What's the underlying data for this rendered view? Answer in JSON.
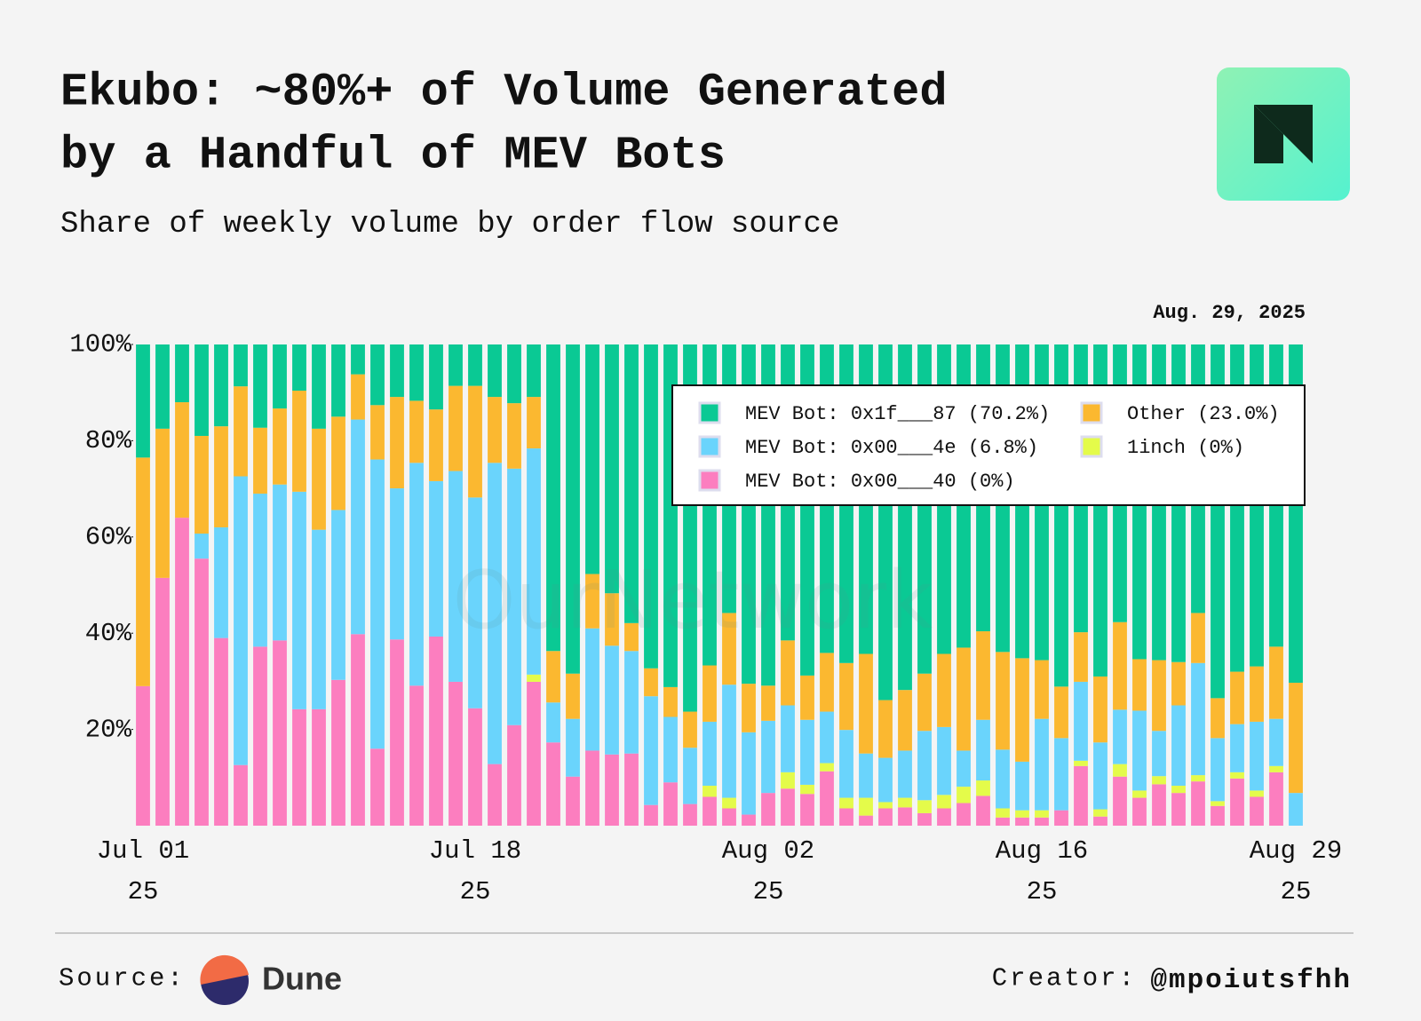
{
  "chart_data": {
    "type": "stacked_bar",
    "title": [
      "Ekubo: ~80%+ of Volume Generated",
      "by a Handful of MEV Bots"
    ],
    "subtitle": "Share of weekly volume by order flow source",
    "annotation": "Aug. 29, 2025",
    "watermark": "OurNetwork",
    "categories": [
      "Jul 01\n25",
      null,
      null,
      null,
      null,
      null,
      null,
      null,
      null,
      null,
      null,
      null,
      null,
      null,
      null,
      null,
      null,
      "Jul 18\n25",
      null,
      null,
      null,
      null,
      null,
      null,
      null,
      null,
      null,
      null,
      null,
      null,
      null,
      null,
      "Aug 02\n25",
      null,
      null,
      null,
      null,
      null,
      null,
      null,
      null,
      null,
      null,
      null,
      null,
      null,
      "Aug 16\n25",
      null,
      null,
      null,
      null,
      null,
      null,
      null,
      null,
      null,
      null,
      null,
      null,
      "Aug 29\n25"
    ],
    "ylim": [
      0,
      100
    ],
    "yticks": [
      {
        "value": 20,
        "label": "20%"
      },
      {
        "value": 40,
        "label": "40%"
      },
      {
        "value": 60,
        "label": "60%"
      },
      {
        "value": 80,
        "label": "80%"
      },
      {
        "value": 100,
        "label": "100%"
      }
    ],
    "grid": false,
    "series": [
      {
        "name": "MEV Bot: 0x00___40 (0%)",
        "color": "#fc7ebf",
        "values": [
          29,
          51.5,
          64,
          55.5,
          39,
          12.6,
          37.2,
          38.5,
          24.2,
          24.2,
          30.3,
          39.8,
          16,
          38.7,
          29.1,
          39.3,
          29.9,
          24.4,
          12.8,
          20.9,
          29.9,
          17.3,
          10.2,
          15.6,
          14.8,
          15,
          4.3,
          9,
          4.5,
          6,
          3.6,
          2.3,
          6.8,
          7.7,
          6.6,
          11.3,
          3.6,
          2.1,
          3.6,
          3.8,
          2.6,
          3.6,
          4.7,
          6.2,
          1.7,
          1.7,
          1.7,
          3.2,
          12.4,
          1.9,
          10.2,
          5.8,
          8.6,
          6.8,
          9.2,
          4.1,
          9.8,
          6,
          11.1,
          0
        ]
      },
      {
        "name": "1inch (0%)",
        "color": "#e4fb4a",
        "values": [
          0,
          0,
          0,
          0,
          0,
          0,
          0,
          0,
          0,
          0,
          0,
          0,
          0,
          0,
          0,
          0,
          0,
          0,
          0,
          0,
          1.5,
          0,
          0,
          0,
          0,
          0,
          0,
          0,
          0,
          2.3,
          2.2,
          0,
          0,
          3.4,
          1.9,
          1.7,
          2.2,
          3.7,
          1.3,
          2,
          2.7,
          2.8,
          3.4,
          3.2,
          1.9,
          1.5,
          1.5,
          0,
          1.1,
          1.5,
          2.6,
          1.5,
          1.7,
          1.5,
          1.3,
          1,
          1.3,
          1.3,
          1.3,
          0
        ]
      },
      {
        "name": "MEV Bot: 0x00___4e (6.8%)",
        "color": "#6ad4fc",
        "values": [
          0,
          0,
          0,
          5.2,
          23,
          60,
          31.8,
          32.4,
          45.2,
          37.3,
          35.3,
          44.6,
          60.1,
          31.4,
          46.3,
          32.3,
          43.8,
          43.8,
          62.6,
          53.3,
          47,
          8.3,
          12,
          25.4,
          22.6,
          21.3,
          22.6,
          13.6,
          11.7,
          13.3,
          23.5,
          17.1,
          15,
          13.9,
          13.5,
          10.7,
          14.1,
          9.2,
          9.2,
          9.8,
          14.4,
          14.1,
          7.5,
          12.6,
          12.2,
          10.1,
          19,
          15,
          16.4,
          13.9,
          11.3,
          16.6,
          9.4,
          16.7,
          23.3,
          13.1,
          10,
          14.3,
          9.8,
          6.8
        ]
      },
      {
        "name": "Other (23.0%)",
        "color": "#fbb830",
        "values": [
          47.5,
          31,
          24,
          20.3,
          21,
          18.7,
          13.7,
          15.8,
          21,
          21,
          19.4,
          9.4,
          11.3,
          19,
          12.9,
          14.9,
          17.7,
          23.2,
          13.7,
          13.6,
          10.7,
          10.7,
          9.4,
          11.3,
          10.9,
          5.8,
          5.8,
          6.2,
          7.5,
          11.7,
          14.9,
          10.1,
          7.3,
          13.5,
          9.2,
          12.2,
          13.9,
          20.7,
          12,
          12.6,
          11.9,
          15.2,
          21.4,
          18.4,
          20.3,
          21.5,
          12.2,
          10.7,
          10.3,
          13.7,
          18.2,
          10.7,
          14.7,
          9,
          10.4,
          8.3,
          10.9,
          11.5,
          15,
          22.9
        ]
      },
      {
        "name": "MEV Bot: 0x1f___87 (70.2%)",
        "color": "#0ac994",
        "values": [
          23.5,
          17.5,
          12,
          19,
          17,
          8.7,
          17.3,
          13.3,
          9.6,
          17.5,
          15,
          6.2,
          12.6,
          10.9,
          11.7,
          13.5,
          8.6,
          8.6,
          10.9,
          12.2,
          10.9,
          63.7,
          68.4,
          47.7,
          51.7,
          57.9,
          67.3,
          71.2,
          76.3,
          66.7,
          55.8,
          70.5,
          70.9,
          61.5,
          68.8,
          64.1,
          66.2,
          64.3,
          73.9,
          71.8,
          68.4,
          64.3,
          63,
          59.6,
          63.9,
          65.2,
          65.6,
          71.1,
          59.8,
          69,
          57.7,
          65.4,
          65.6,
          66,
          55.8,
          73.5,
          68,
          66.9,
          62.8,
          70.3
        ]
      }
    ],
    "footer": {
      "source_label": "Source:",
      "source": "Dune",
      "creator_label": "Creator:",
      "creator": "@mpoiutsfhh"
    }
  }
}
